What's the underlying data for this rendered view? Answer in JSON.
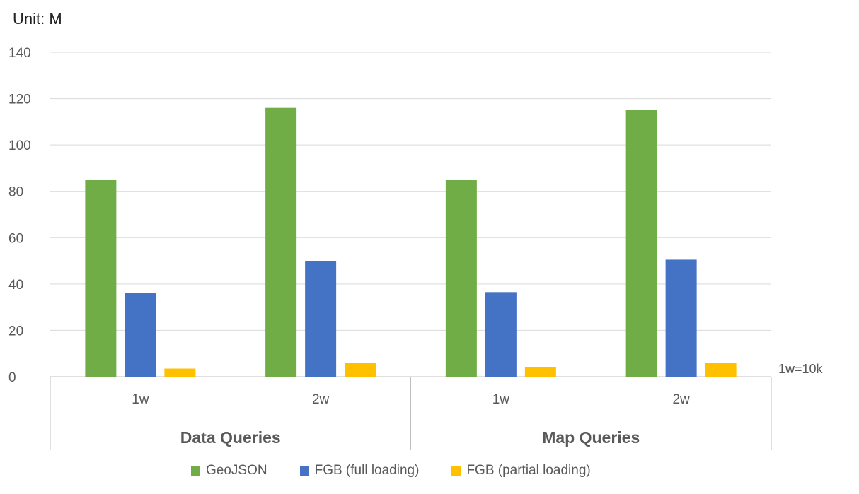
{
  "unit_label": "Unit: M",
  "note": "1w=10k",
  "colors": {
    "GeoJSON": "#70AD47",
    "FGB (full loading)": "#4472C4",
    "FGB (partial loading)": "#FFC000"
  },
  "legend": [
    {
      "label": "GeoJSON",
      "color": "#70AD47"
    },
    {
      "label": "FGB (full loading)",
      "color": "#4472C4"
    },
    {
      "label": "FGB (partial loading)",
      "color": "#FFC000"
    }
  ],
  "chart_data": {
    "type": "bar",
    "groups": [
      {
        "label": "Data Queries",
        "categories": [
          "1w",
          "2w"
        ]
      },
      {
        "label": "Map Queries",
        "categories": [
          "1w",
          "2w"
        ]
      }
    ],
    "categories": [
      "1w",
      "2w",
      "1w",
      "2w"
    ],
    "series": [
      {
        "name": "GeoJSON",
        "values": [
          85,
          116,
          85,
          115
        ]
      },
      {
        "name": "FGB (full loading)",
        "values": [
          36,
          50,
          36.5,
          50.5
        ]
      },
      {
        "name": "FGB (partial loading)",
        "values": [
          3.5,
          6,
          4,
          6
        ]
      }
    ],
    "ylim": [
      0,
      140
    ],
    "yticks": [
      0,
      20,
      40,
      60,
      80,
      100,
      120,
      140
    ],
    "grid": true,
    "legend_position": "bottom"
  }
}
